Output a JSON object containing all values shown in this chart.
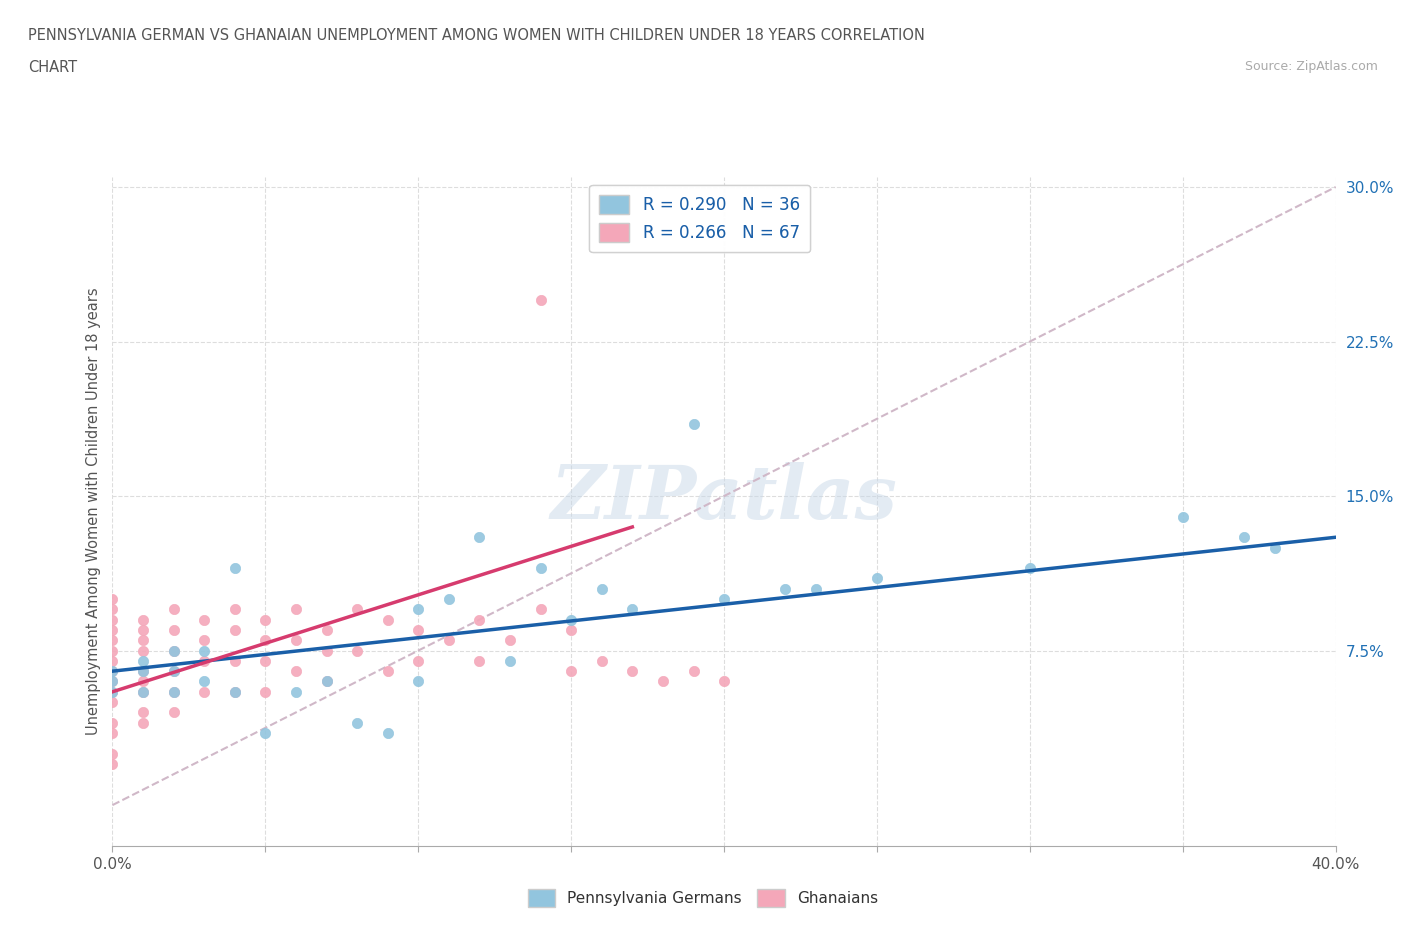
{
  "title_line1": "PENNSYLVANIA GERMAN VS GHANAIAN UNEMPLOYMENT AMONG WOMEN WITH CHILDREN UNDER 18 YEARS CORRELATION",
  "title_line2": "CHART",
  "source_text": "Source: ZipAtlas.com",
  "ylabel": "Unemployment Among Women with Children Under 18 years",
  "xmin": 0.0,
  "xmax": 0.4,
  "ymin": -0.02,
  "ymax": 0.305,
  "yticks": [
    0.075,
    0.15,
    0.225,
    0.3
  ],
  "ytick_labels": [
    "7.5%",
    "15.0%",
    "22.5%",
    "30.0%"
  ],
  "watermark": "ZIPatlas",
  "blue_R": 0.29,
  "blue_N": 36,
  "pink_R": 0.266,
  "pink_N": 67,
  "blue_color": "#92c5de",
  "pink_color": "#f4a7b9",
  "blue_line_color": "#1a5fa8",
  "pink_line_color": "#d63b6e",
  "trendline_dash_color": "#d0b8c8",
  "legend_label_blue": "Pennsylvania Germans",
  "legend_label_pink": "Ghanaians",
  "blue_scatter_x": [
    0.0,
    0.0,
    0.0,
    0.01,
    0.01,
    0.01,
    0.02,
    0.02,
    0.02,
    0.03,
    0.03,
    0.04,
    0.04,
    0.05,
    0.06,
    0.07,
    0.08,
    0.09,
    0.1,
    0.1,
    0.11,
    0.12,
    0.13,
    0.14,
    0.15,
    0.16,
    0.17,
    0.19,
    0.2,
    0.22,
    0.23,
    0.25,
    0.3,
    0.35,
    0.37,
    0.38
  ],
  "blue_scatter_y": [
    0.065,
    0.06,
    0.055,
    0.07,
    0.065,
    0.055,
    0.075,
    0.065,
    0.055,
    0.075,
    0.06,
    0.115,
    0.055,
    0.035,
    0.055,
    0.06,
    0.04,
    0.035,
    0.095,
    0.06,
    0.1,
    0.13,
    0.07,
    0.115,
    0.09,
    0.105,
    0.095,
    0.185,
    0.1,
    0.105,
    0.105,
    0.11,
    0.115,
    0.14,
    0.13,
    0.125
  ],
  "pink_scatter_x": [
    0.0,
    0.0,
    0.0,
    0.0,
    0.0,
    0.0,
    0.0,
    0.0,
    0.0,
    0.0,
    0.0,
    0.0,
    0.0,
    0.0,
    0.0,
    0.01,
    0.01,
    0.01,
    0.01,
    0.01,
    0.01,
    0.01,
    0.01,
    0.01,
    0.02,
    0.02,
    0.02,
    0.02,
    0.02,
    0.02,
    0.03,
    0.03,
    0.03,
    0.03,
    0.04,
    0.04,
    0.04,
    0.04,
    0.05,
    0.05,
    0.05,
    0.05,
    0.06,
    0.06,
    0.06,
    0.07,
    0.07,
    0.07,
    0.08,
    0.08,
    0.09,
    0.09,
    0.1,
    0.1,
    0.11,
    0.12,
    0.12,
    0.13,
    0.14,
    0.14,
    0.15,
    0.15,
    0.16,
    0.17,
    0.18,
    0.19,
    0.2
  ],
  "pink_scatter_y": [
    0.1,
    0.095,
    0.09,
    0.085,
    0.08,
    0.075,
    0.07,
    0.065,
    0.06,
    0.055,
    0.05,
    0.04,
    0.035,
    0.025,
    0.02,
    0.09,
    0.085,
    0.08,
    0.075,
    0.065,
    0.06,
    0.055,
    0.045,
    0.04,
    0.095,
    0.085,
    0.075,
    0.065,
    0.055,
    0.045,
    0.09,
    0.08,
    0.07,
    0.055,
    0.095,
    0.085,
    0.07,
    0.055,
    0.09,
    0.08,
    0.07,
    0.055,
    0.095,
    0.08,
    0.065,
    0.085,
    0.075,
    0.06,
    0.095,
    0.075,
    0.09,
    0.065,
    0.085,
    0.07,
    0.08,
    0.09,
    0.07,
    0.08,
    0.095,
    0.245,
    0.085,
    0.065,
    0.07,
    0.065,
    0.06,
    0.065,
    0.06
  ],
  "blue_trendline_x": [
    0.0,
    0.4
  ],
  "blue_trendline_y": [
    0.065,
    0.13
  ],
  "pink_trendline_x": [
    0.0,
    0.17
  ],
  "pink_trendline_y": [
    0.055,
    0.135
  ],
  "dash_trendline_x": [
    0.0,
    0.4
  ],
  "dash_trendline_y": [
    0.0,
    0.3
  ]
}
